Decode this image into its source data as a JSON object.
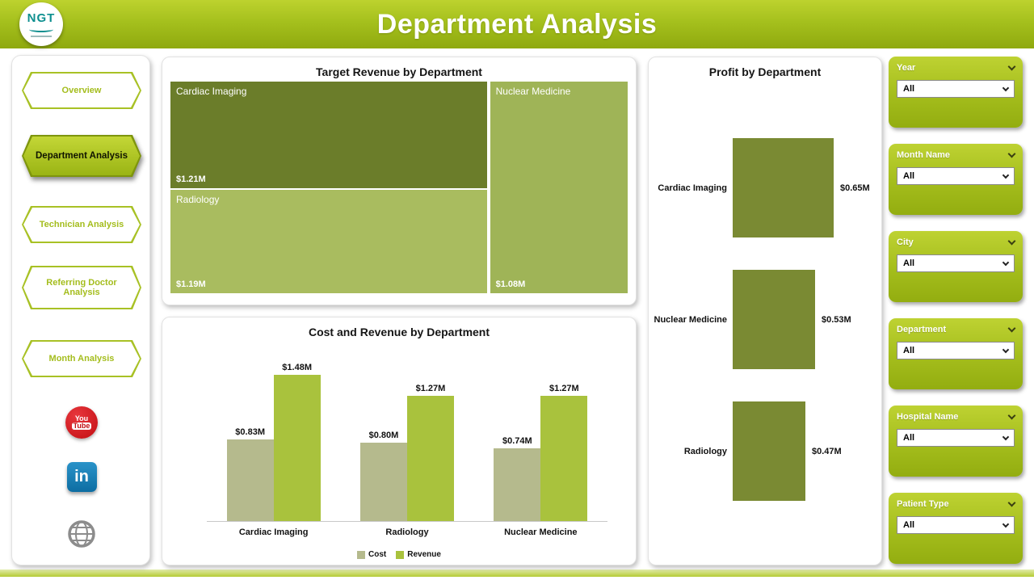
{
  "header": {
    "title": "Department Analysis",
    "logo_text": "NGT"
  },
  "nav": {
    "items": [
      {
        "label": "Overview",
        "active": false
      },
      {
        "label": "Department Analysis",
        "active": true
      },
      {
        "label": "Technician Analysis",
        "active": false
      },
      {
        "label": "Referring Doctor Analysis",
        "active": false
      },
      {
        "label": "Month Analysis",
        "active": false
      }
    ]
  },
  "social": {
    "youtube_line1": "You",
    "youtube_line2": "Tube",
    "linkedin_text": "in"
  },
  "slicers": [
    {
      "label": "Year",
      "value": "All"
    },
    {
      "label": "Month Name",
      "value": "All"
    },
    {
      "label": "City",
      "value": "All"
    },
    {
      "label": "Department",
      "value": "All"
    },
    {
      "label": "Hospital Name",
      "value": "All"
    },
    {
      "label": "Patient Type",
      "value": "All"
    }
  ],
  "colors": {
    "header_green": "#a5c01d",
    "cost": "#b5ba8d",
    "revenue": "#a9c23d",
    "profit": "#7a8a33"
  },
  "chart_data": [
    {
      "type": "treemap",
      "title": "Target Revenue by Department",
      "items": [
        {
          "label": "Cardiac Imaging",
          "value": 1.21,
          "value_label": "$1.21M",
          "color": "#6b7d2a"
        },
        {
          "label": "Radiology",
          "value": 1.19,
          "value_label": "$1.19M",
          "color": "#a9bc5f"
        },
        {
          "label": "Nuclear Medicine",
          "value": 1.08,
          "value_label": "$1.08M",
          "color": "#9fb457"
        }
      ]
    },
    {
      "type": "bar",
      "title": "Cost and Revenue by Department",
      "categories": [
        "Cardiac Imaging",
        "Radiology",
        "Nuclear Medicine"
      ],
      "series": [
        {
          "name": "Cost",
          "values": [
            0.83,
            0.8,
            0.74
          ],
          "labels": [
            "$0.83M",
            "$0.80M",
            "$0.74M"
          ],
          "color": "#b5ba8d"
        },
        {
          "name": "Revenue",
          "values": [
            1.48,
            1.27,
            1.27
          ],
          "labels": [
            "$1.48M",
            "$1.27M",
            "$1.27M"
          ],
          "color": "#a9c23d"
        }
      ],
      "ylim": [
        0,
        1.5
      ],
      "legend_position": "bottom"
    },
    {
      "type": "bar-horizontal",
      "title": "Profit by Department",
      "categories": [
        "Cardiac Imaging",
        "Nuclear Medicine",
        "Radiology"
      ],
      "values": [
        0.65,
        0.53,
        0.47
      ],
      "labels": [
        "$0.65M",
        "$0.53M",
        "$0.47M"
      ],
      "color": "#7a8a33",
      "xlim": [
        0,
        0.7
      ]
    }
  ]
}
